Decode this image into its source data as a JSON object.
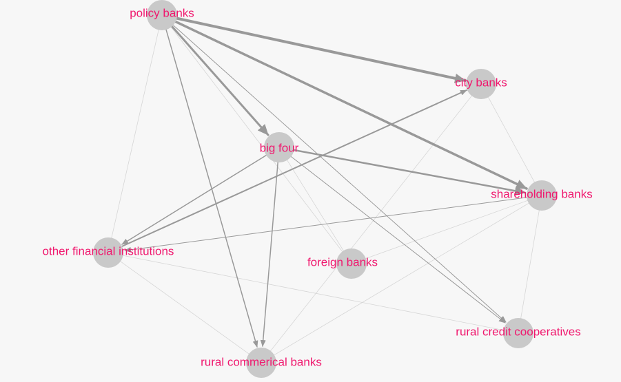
{
  "nodes": [
    {
      "label": "policy banks"
    },
    {
      "label": "city banks"
    },
    {
      "label": "big four"
    },
    {
      "label": "shareholding banks"
    },
    {
      "label": "other financial institutions"
    },
    {
      "label": "foreign banks"
    },
    {
      "label": "rural credit cooperatives"
    },
    {
      "label": "rural commerical banks"
    }
  ]
}
